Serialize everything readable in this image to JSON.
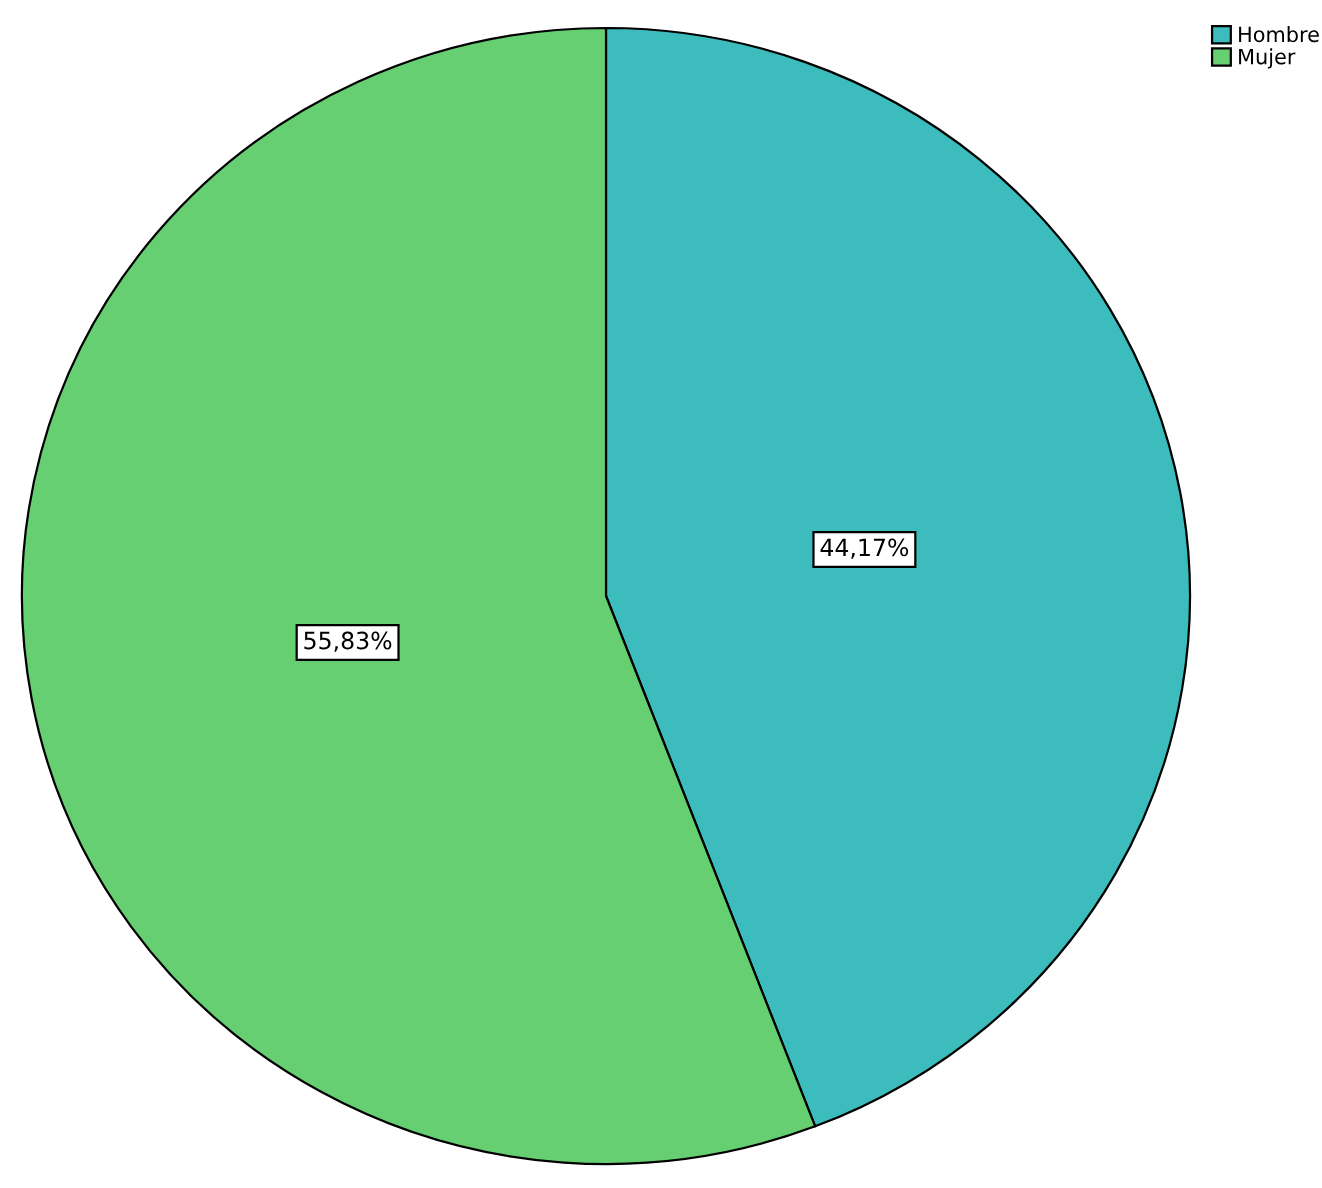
{
  "chart_data": {
    "type": "pie",
    "categories": [
      "Hombre",
      "Mujer"
    ],
    "values": [
      44.17,
      55.83
    ],
    "colors": [
      "#3cbcbc",
      "#66cf72"
    ],
    "value_labels": [
      "44,17%",
      "55,83%"
    ],
    "legend": "top right"
  }
}
